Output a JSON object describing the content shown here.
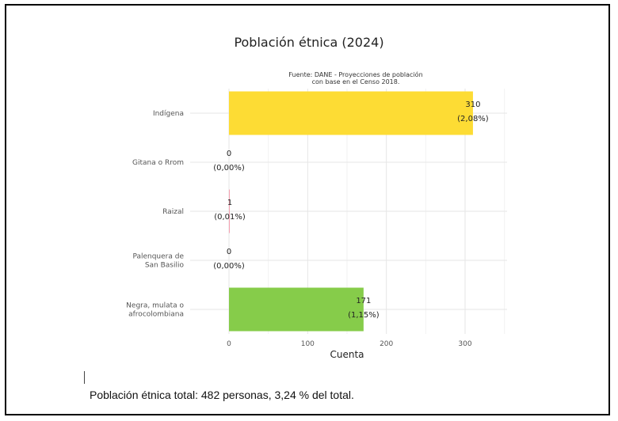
{
  "chart_data": {
    "type": "bar",
    "orientation": "horizontal",
    "title": "Población étnica (2024)",
    "subtitle_lines": [
      "Fuente: DANE - Proyecciones de población",
      "con base en el Censo 2018."
    ],
    "xlabel": "Cuenta",
    "ylabel": "",
    "xlim": [
      0,
      350
    ],
    "x_ticks": [
      {
        "value": 0,
        "label": "0"
      },
      {
        "value": 100,
        "label": "100"
      },
      {
        "value": 200,
        "label": "200"
      },
      {
        "value": 300,
        "label": "300"
      }
    ],
    "grid": true,
    "categories": [
      {
        "lines": [
          "Indígena"
        ]
      },
      {
        "lines": [
          "Gitana o Rrom"
        ]
      },
      {
        "lines": [
          "Raizal"
        ]
      },
      {
        "lines": [
          "Palenquera de",
          "San Basilio"
        ]
      },
      {
        "lines": [
          "Negra, mulata o",
          "afrocolombiana"
        ]
      }
    ],
    "values": [
      310,
      0,
      1,
      0,
      171
    ],
    "value_labels": [
      "310",
      "0",
      "1",
      "0",
      "171"
    ],
    "percent_labels": [
      "(2,08%)",
      "(0,00%)",
      "(0,01%)",
      "(0,00%)",
      "(1,15%)"
    ],
    "colors": [
      "#FDDC34",
      "#E8E8E8",
      "#F4A0B0",
      "#E8E8E8",
      "#86CC4A"
    ]
  },
  "summary": "Población étnica total: 482 personas, 3,24 % del total."
}
